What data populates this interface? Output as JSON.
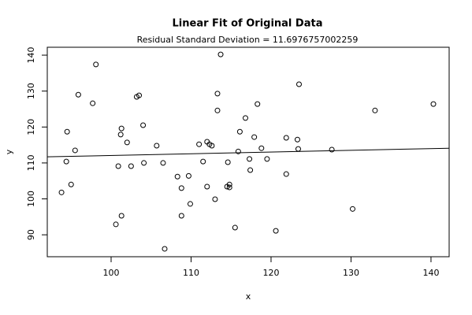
{
  "chart_data": {
    "type": "scatter",
    "title": "Linear Fit of Original Data",
    "subtitle": "Residual Standard Deviation =  11.6976757002259",
    "x_label": "x",
    "y_label": "y",
    "xlim": [
      92.02,
      142.27
    ],
    "ylim": [
      83.9,
      142.2
    ],
    "xticks": [
      100,
      110,
      120,
      130,
      140
    ],
    "yticks": [
      90,
      100,
      110,
      120,
      130,
      140
    ],
    "color": "#000000",
    "x": [
      93.8,
      94.4,
      94.5,
      95.0,
      95.5,
      95.9,
      97.7,
      98.1,
      100.6,
      100.9,
      101.2,
      101.3,
      101.3,
      102.0,
      102.5,
      103.2,
      103.5,
      104.0,
      104.1,
      105.7,
      106.5,
      106.7,
      108.3,
      108.8,
      108.8,
      109.7,
      109.9,
      111.0,
      111.5,
      112.0,
      112.0,
      112.3,
      112.6,
      113.0,
      113.3,
      113.3,
      113.7,
      114.5,
      114.6,
      114.8,
      114.8,
      115.5,
      115.9,
      116.1,
      116.8,
      117.3,
      117.4,
      117.9,
      118.3,
      118.8,
      119.5,
      120.6,
      121.9,
      121.9,
      123.3,
      123.4,
      123.5,
      127.6,
      130.2,
      133.0,
      140.3
    ],
    "values": [
      101.8,
      110.4,
      118.7,
      104.0,
      113.5,
      129.0,
      126.6,
      137.4,
      92.9,
      109.1,
      117.9,
      119.6,
      95.3,
      115.7,
      109.1,
      128.4,
      128.8,
      120.5,
      110.0,
      114.8,
      110.0,
      86.1,
      106.2,
      103.0,
      95.3,
      106.4,
      98.6,
      115.2,
      110.4,
      115.9,
      103.4,
      115.2,
      114.8,
      99.9,
      124.6,
      129.3,
      140.2,
      103.4,
      110.2,
      104.0,
      103.2,
      92.0,
      113.2,
      118.7,
      122.5,
      111.1,
      108.0,
      117.2,
      126.4,
      114.1,
      111.1,
      91.1,
      106.9,
      117.0,
      116.5,
      113.9,
      131.9,
      113.7,
      97.2,
      124.6,
      126.4
    ],
    "fit_line": {
      "x": [
        92.02,
        142.27
      ],
      "y": [
        111.7,
        114.1
      ]
    }
  }
}
